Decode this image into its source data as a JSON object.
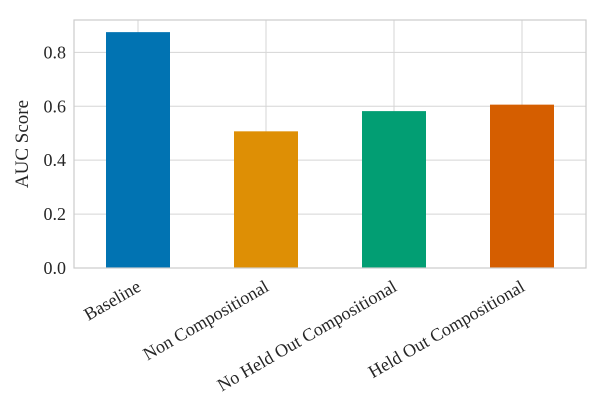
{
  "chart_data": {
    "type": "bar",
    "title": "",
    "xlabel": "",
    "ylabel": "AUC Score",
    "categories": [
      "Baseline",
      "Non Compositional",
      "No Held Out Compositional",
      "Held Out Compositional"
    ],
    "values": [
      0.875,
      0.507,
      0.582,
      0.606
    ],
    "ylim": [
      0,
      0.92
    ],
    "yticks": [
      0.0,
      0.2,
      0.4,
      0.6,
      0.8
    ],
    "ytick_labels": [
      "0.0",
      "0.2",
      "0.4",
      "0.6",
      "0.8"
    ],
    "grid": true,
    "legend": "none",
    "colors": [
      "#0173b2",
      "#de8f05",
      "#029e73",
      "#d55e00"
    ]
  }
}
